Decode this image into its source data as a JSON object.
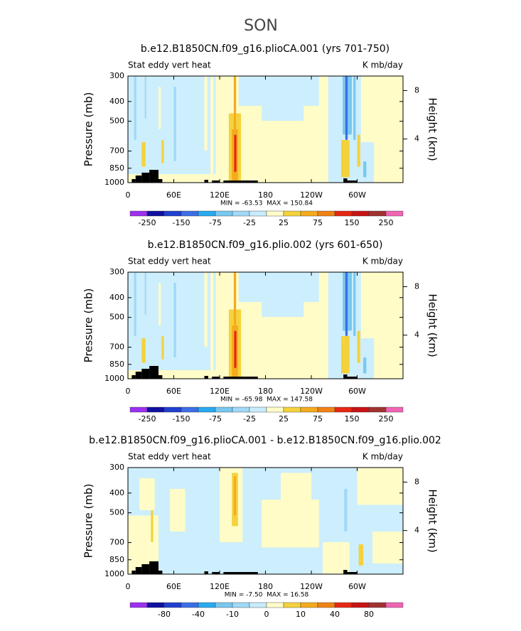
{
  "title": "SON",
  "chart_data": [
    {
      "type": "contour",
      "title": "b.e12.B1850CN.f09_g16.plioCA.001 (yrs 701-750)",
      "left_label": "Stat eddy vert heat",
      "right_label": "K mb/day",
      "ylabel": "Pressure (mb)",
      "y2label": "Height (km)",
      "xlim": [
        0,
        360
      ],
      "xticks": [
        0,
        {
          "value": 60,
          "label": "60E"
        },
        {
          "value": 120,
          "label": "120E"
        },
        180,
        {
          "value": 240,
          "label": "120W"
        },
        {
          "value": 300,
          "label": "60W"
        }
      ],
      "ylim": [
        1000,
        300
      ],
      "y_log": true,
      "yticks": [
        300,
        400,
        500,
        700,
        850,
        1000
      ],
      "y2lim": [
        0.4,
        9.2
      ],
      "y2ticks": [
        4,
        8
      ],
      "stats": "MIN = -63.53  MAX = 150.84",
      "colorbar_colors": [
        "#9b30f0",
        "#1010a0",
        "#2040d0",
        "#3c6ee6",
        "#28aaf0",
        "#78c8f0",
        "#a0d8f8",
        "#c8ecfc",
        "#fffcc8",
        "#f5d23c",
        "#f5aa1e",
        "#f08214",
        "#e62814",
        "#c81414",
        "#a03232",
        "#f064b4"
      ],
      "colorbar_ticks": [
        -250,
        null,
        -150,
        null,
        -75,
        null,
        -25,
        null,
        25,
        null,
        75,
        null,
        150,
        null,
        250
      ]
    },
    {
      "type": "contour",
      "title": "b.e12.B1850CN.f09_g16.plio.002 (yrs 601-650)",
      "left_label": "Stat eddy vert heat",
      "right_label": "K mb/day",
      "ylabel": "Pressure (mb)",
      "y2label": "Height (km)",
      "xlim": [
        0,
        360
      ],
      "xticks": [
        0,
        {
          "value": 60,
          "label": "60E"
        },
        {
          "value": 120,
          "label": "120E"
        },
        180,
        {
          "value": 240,
          "label": "120W"
        },
        {
          "value": 300,
          "label": "60W"
        }
      ],
      "ylim": [
        1000,
        300
      ],
      "y_log": true,
      "yticks": [
        300,
        400,
        500,
        700,
        850,
        1000
      ],
      "y2lim": [
        0.4,
        9.2
      ],
      "y2ticks": [
        4,
        8
      ],
      "stats": "MIN = -65.98  MAX = 147.58",
      "colorbar_colors": [
        "#9b30f0",
        "#1010a0",
        "#2040d0",
        "#3c6ee6",
        "#28aaf0",
        "#78c8f0",
        "#a0d8f8",
        "#c8ecfc",
        "#fffcc8",
        "#f5d23c",
        "#f5aa1e",
        "#f08214",
        "#e62814",
        "#c81414",
        "#a03232",
        "#f064b4"
      ],
      "colorbar_ticks": [
        -250,
        null,
        -150,
        null,
        -75,
        null,
        -25,
        null,
        25,
        null,
        75,
        null,
        150,
        null,
        250
      ]
    },
    {
      "type": "contour",
      "title": "b.e12.B1850CN.f09_g16.plioCA.001 - b.e12.B1850CN.f09_g16.plio.002",
      "left_label": "Stat eddy vert heat",
      "right_label": "K mb/day",
      "ylabel": "Pressure (mb)",
      "y2label": "Height (km)",
      "xlim": [
        0,
        360
      ],
      "xticks": [
        0,
        {
          "value": 60,
          "label": "60E"
        },
        {
          "value": 120,
          "label": "120E"
        },
        180,
        {
          "value": 240,
          "label": "120W"
        },
        {
          "value": 300,
          "label": "60W"
        }
      ],
      "ylim": [
        1000,
        300
      ],
      "y_log": true,
      "yticks": [
        300,
        400,
        500,
        700,
        850,
        1000
      ],
      "y2lim": [
        0.4,
        9.2
      ],
      "y2ticks": [
        4,
        8
      ],
      "stats": "MIN = -7.50  MAX = 16.58",
      "colorbar_colors": [
        "#9b30f0",
        "#1010a0",
        "#2040d0",
        "#3c6ee6",
        "#28aaf0",
        "#78c8f0",
        "#a0d8f8",
        "#c8ecfc",
        "#fffcc8",
        "#f5d23c",
        "#f5aa1e",
        "#f08214",
        "#e62814",
        "#c81414",
        "#a03232",
        "#f064b4"
      ],
      "colorbar_ticks": [
        null,
        -80,
        null,
        -40,
        null,
        -10,
        null,
        0,
        null,
        10,
        null,
        40,
        null,
        80,
        null
      ]
    }
  ]
}
